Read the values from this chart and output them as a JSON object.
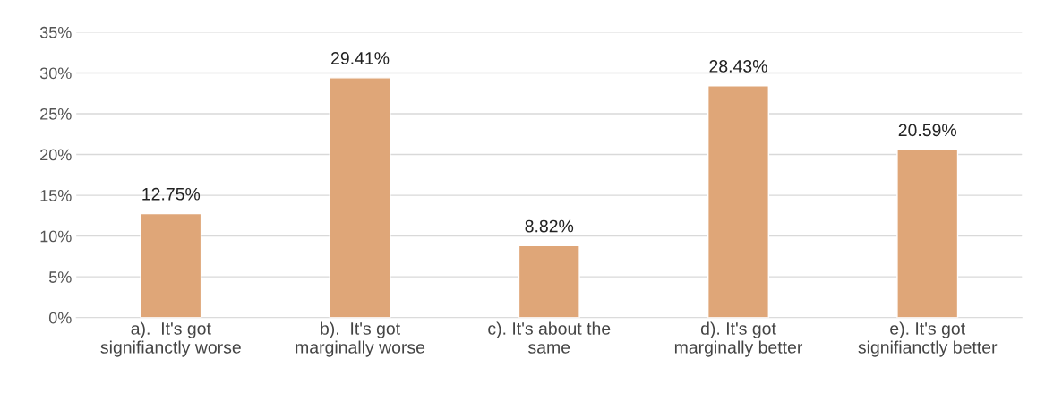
{
  "chart_data": {
    "type": "bar",
    "categories": [
      "a).  It's got\nsignifianctly worse",
      "b).  It's got\nmarginally worse",
      "c). It's about the\nsame",
      "d). It's got\nmarginally better",
      "e). It's got\nsignifianctly better"
    ],
    "values": [
      12.75,
      29.41,
      8.82,
      28.43,
      20.59
    ],
    "value_labels": [
      "12.75%",
      "29.41%",
      "8.82%",
      "28.43%",
      "20.59%"
    ],
    "color": "#dfa678",
    "ylim": [
      0,
      35
    ],
    "yticks": [
      {
        "value": 0,
        "label": "0%"
      },
      {
        "value": 5,
        "label": "5%"
      },
      {
        "value": 10,
        "label": "10%"
      },
      {
        "value": 15,
        "label": "15%"
      },
      {
        "value": 20,
        "label": "20%"
      },
      {
        "value": 25,
        "label": "25%"
      },
      {
        "value": 30,
        "label": "30%"
      },
      {
        "value": 35,
        "label": "35%"
      }
    ],
    "grid": "y"
  }
}
